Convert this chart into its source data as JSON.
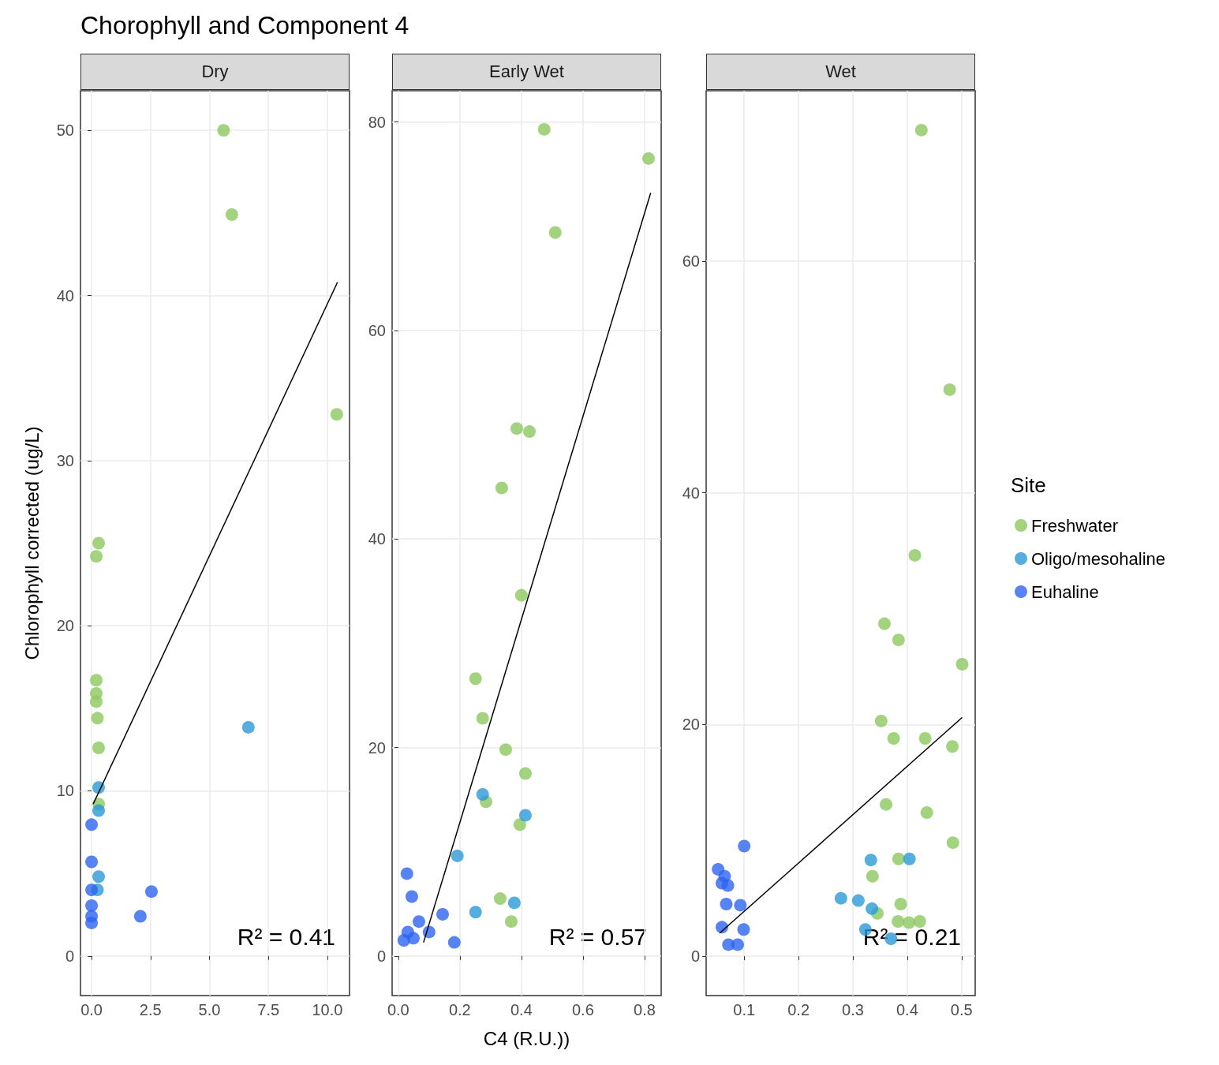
{
  "chart_data": [
    {
      "type": "scatter",
      "title": "Chorophyll and Component 4",
      "subtitle": "Dry",
      "ylabel": "Chlorophyll corrected (ug/L)",
      "marker": "circle",
      "grid": true,
      "xlim": [
        -0.47,
        10.94
      ],
      "ylim": [
        -2.4,
        52.4
      ],
      "xticks": [
        {
          "value": 0,
          "label": "0.0"
        },
        {
          "value": 2.5,
          "label": "2.5"
        },
        {
          "value": 5,
          "label": "5.0"
        },
        {
          "value": 7.5,
          "label": "7.5"
        },
        {
          "value": 10,
          "label": "10.0"
        }
      ],
      "yticks": [
        0,
        10,
        20,
        30,
        40,
        50
      ],
      "annotations": [
        "R² = 0.41"
      ],
      "series": [
        {
          "color": "#8dc85f",
          "x": [
            5.6,
            5.95,
            10.4,
            0.3,
            0.2,
            0.2,
            0.2,
            0.2,
            0.25,
            0.3,
            0.3
          ],
          "values": [
            50,
            44.9,
            32.8,
            25.0,
            24.2,
            16.7,
            15.9,
            15.4,
            14.4,
            12.6,
            9.2
          ]
        },
        {
          "color": "#2b9ad4",
          "x": [
            6.65,
            0.3,
            0.3,
            0.3,
            0.25
          ],
          "values": [
            13.85,
            10.2,
            8.8,
            4.8,
            4.0
          ]
        },
        {
          "color": "#2d64f0",
          "x": [
            0,
            0,
            0,
            0,
            0,
            0,
            2.07,
            2.54
          ],
          "values": [
            7.95,
            5.7,
            4.0,
            3.05,
            2.4,
            2.0,
            2.4,
            3.9
          ]
        },
        {
          "type": "line",
          "marker": "none",
          "color": "#000000",
          "x": [
            0.07,
            10.43
          ],
          "values": [
            9.2,
            40.8
          ]
        }
      ]
    },
    {
      "type": "scatter",
      "subtitle": "Early Wet",
      "xlabel": "C4 (R.U.))",
      "marker": "circle",
      "grid": true,
      "xlim": [
        -0.02,
        0.854
      ],
      "ylim": [
        -3.8,
        83.0
      ],
      "xticks": [
        {
          "value": 0,
          "label": "0.0"
        },
        {
          "value": 0.2,
          "label": "0.2"
        },
        {
          "value": 0.4,
          "label": "0.4"
        },
        {
          "value": 0.6,
          "label": "0.6"
        },
        {
          "value": 0.8,
          "label": "0.8"
        }
      ],
      "yticks": [
        0,
        20,
        40,
        60,
        80
      ],
      "annotations": [
        "R² = 0.57"
      ],
      "series": [
        {
          "color": "#8dc85f",
          "x": [
            0.474,
            0.813,
            0.51,
            0.385,
            0.426,
            0.336,
            0.4,
            0.251,
            0.274,
            0.349,
            0.413,
            0.285,
            0.395,
            0.331,
            0.367
          ],
          "values": [
            79.3,
            76.5,
            69.4,
            50.6,
            50.3,
            44.9,
            34.6,
            26.6,
            22.8,
            19.8,
            17.5,
            14.8,
            12.6,
            5.5,
            3.3
          ]
        },
        {
          "color": "#2b9ad4",
          "x": [
            0.274,
            0.413,
            0.192,
            0.251,
            0.377
          ],
          "values": [
            15.5,
            13.5,
            9.6,
            4.2,
            5.1
          ]
        },
        {
          "color": "#2d64f0",
          "x": [
            0.028,
            0.044,
            0.144,
            0.067,
            0.1,
            0.031,
            0.018,
            0.049,
            0.182
          ],
          "values": [
            7.9,
            5.7,
            4.0,
            3.3,
            2.3,
            2.3,
            1.5,
            1.7,
            1.3
          ]
        },
        {
          "type": "line",
          "marker": "none",
          "color": "#000000",
          "x": [
            0.082,
            0.82
          ],
          "values": [
            1.3,
            73.2
          ]
        }
      ]
    },
    {
      "type": "scatter",
      "subtitle": "Wet",
      "legend_title": "Site",
      "legend": "right",
      "marker": "circle",
      "grid": true,
      "xlim": [
        0.03,
        0.525
      ],
      "ylim": [
        -3.4,
        74.7
      ],
      "xticks": [
        0.1,
        0.2,
        0.3,
        0.4,
        0.5
      ],
      "yticks": [
        0,
        20,
        40,
        60
      ],
      "annotations": [
        "R² = 0.21"
      ],
      "series": [
        {
          "name": "Freshwater",
          "color": "#8dc85f",
          "x": [
            0.426,
            0.478,
            0.414,
            0.358,
            0.384,
            0.501,
            0.352,
            0.375,
            0.433,
            0.483,
            0.361,
            0.436,
            0.484,
            0.384,
            0.336,
            0.388,
            0.345,
            0.383,
            0.403,
            0.423
          ],
          "values": [
            71.3,
            48.9,
            34.6,
            28.7,
            27.3,
            25.2,
            20.3,
            18.8,
            18.8,
            18.1,
            13.1,
            12.4,
            9.8,
            8.4,
            6.9,
            4.5,
            3.7,
            3.0,
            2.9,
            3.0
          ]
        },
        {
          "name": "Oligo/mesohaline",
          "color": "#2b9ad4",
          "x": [
            0.333,
            0.404,
            0.278,
            0.31,
            0.335,
            0.323,
            0.37
          ],
          "values": [
            8.3,
            8.4,
            5.0,
            4.8,
            4.1,
            2.3,
            1.5
          ]
        },
        {
          "name": "Euhaline",
          "color": "#2d64f0",
          "x": [
            0.1,
            0.052,
            0.064,
            0.07,
            0.059,
            0.067,
            0.093,
            0.059,
            0.099,
            0.071,
            0.088
          ],
          "values": [
            9.5,
            7.5,
            6.9,
            6.1,
            6.3,
            4.5,
            4.4,
            2.5,
            2.3,
            1.0,
            1.0
          ]
        },
        {
          "type": "line",
          "marker": "none",
          "color": "#000000",
          "x": [
            0.055,
            0.501
          ],
          "values": [
            2.0,
            20.6
          ]
        }
      ]
    }
  ]
}
